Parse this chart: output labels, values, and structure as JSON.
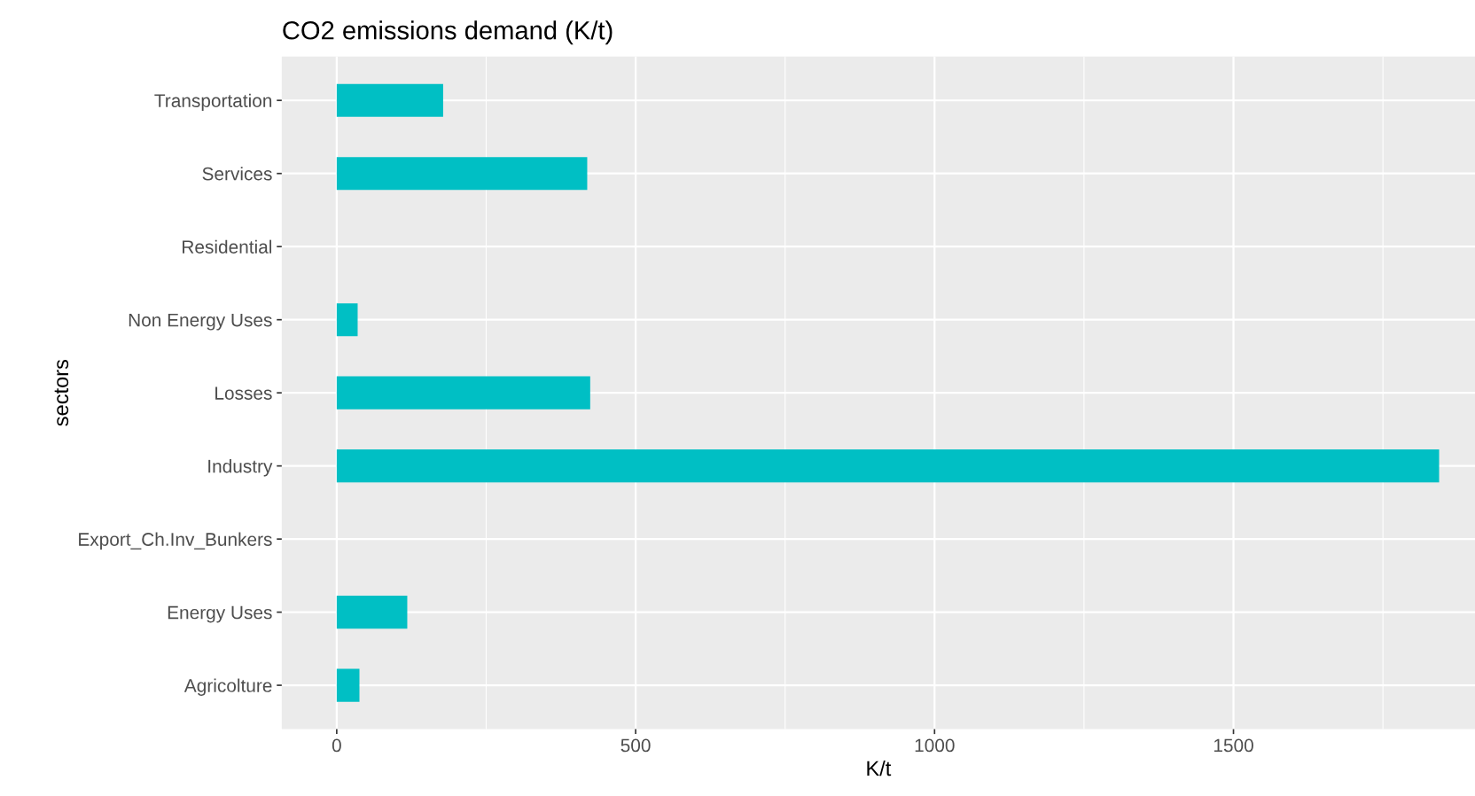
{
  "chart_data": {
    "type": "bar",
    "orientation": "horizontal",
    "title": "CO2 emissions demand (K/t)",
    "xlabel": "K/t",
    "ylabel": "sectors",
    "categories": [
      "Transportation",
      "Services",
      "Residential",
      "Non Energy Uses",
      "Losses",
      "Industry",
      "Export_Ch.Inv_Bunkers",
      "Energy Uses",
      "Agricolture"
    ],
    "values": [
      178,
      419,
      0,
      35,
      424,
      1844,
      0,
      118,
      38
    ],
    "color": "#00bfc4",
    "xlim": [
      -92,
      1904
    ],
    "xticks": [
      0,
      500,
      1000,
      1500
    ],
    "grid": true
  }
}
